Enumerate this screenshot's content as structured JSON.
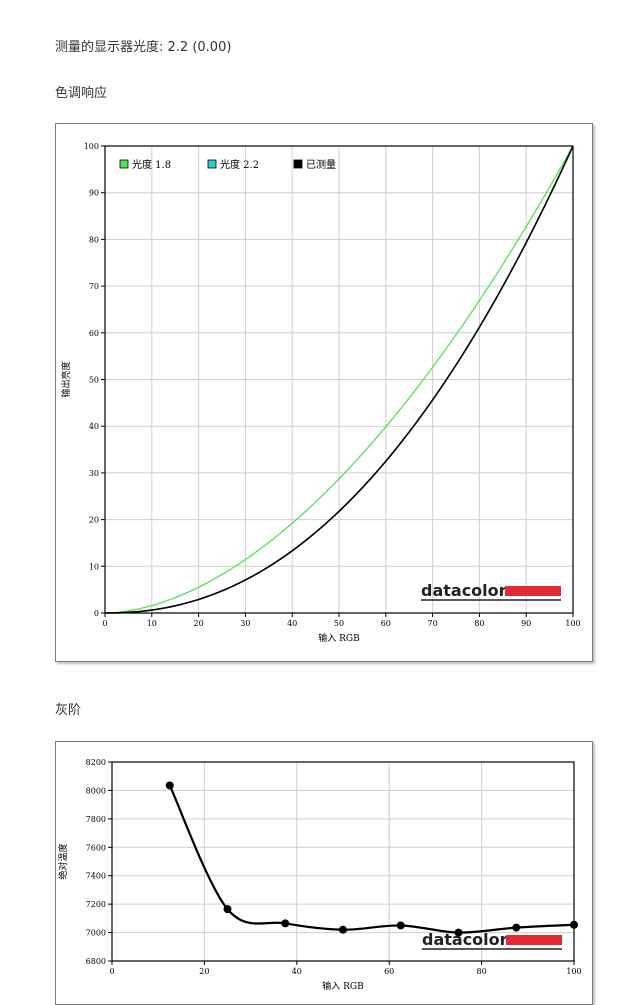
{
  "header": {
    "gamma_label": "测量的显示器光度: 2.2 (0.00)",
    "tone_title": "色调响应",
    "gray_title": "灰阶"
  },
  "logo": {
    "text": "datacolor",
    "bar_color": "#e32b36"
  },
  "chart_data": [
    {
      "type": "line",
      "title": "色调响应",
      "xlabel": "输入 RGB",
      "ylabel": "输出亮度",
      "xlim": [
        0,
        100
      ],
      "ylim": [
        0,
        100
      ],
      "xticks": [
        0,
        10,
        20,
        30,
        40,
        50,
        60,
        70,
        80,
        90,
        100
      ],
      "yticks": [
        0,
        10,
        20,
        30,
        40,
        50,
        60,
        70,
        80,
        90,
        100
      ],
      "grid": true,
      "legend_position": "top-left",
      "series": [
        {
          "name": "光度 1.8",
          "color": "#55e055",
          "gamma": 1.8
        },
        {
          "name": "光度 2.2",
          "color": "#2fc8c8",
          "gamma": 2.2
        },
        {
          "name": "已测量",
          "color": "#000000",
          "gamma": 2.2
        }
      ]
    },
    {
      "type": "line",
      "title": "灰阶",
      "xlabel": "输入 RGB",
      "ylabel": "绝对温度",
      "xlim": [
        0,
        100
      ],
      "ylim": [
        6800,
        8200
      ],
      "xticks": [
        0,
        20,
        40,
        60,
        80,
        100
      ],
      "yticks": [
        6800,
        7000,
        7200,
        7400,
        7600,
        7800,
        8000,
        8200
      ],
      "grid": true,
      "series": [
        {
          "name": "",
          "color": "#000000",
          "x": [
            12.5,
            25,
            37.5,
            50,
            62.5,
            75,
            87.5,
            100
          ],
          "y": [
            8035,
            7165,
            7065,
            7020,
            7050,
            7000,
            7035,
            7055
          ]
        }
      ]
    }
  ]
}
